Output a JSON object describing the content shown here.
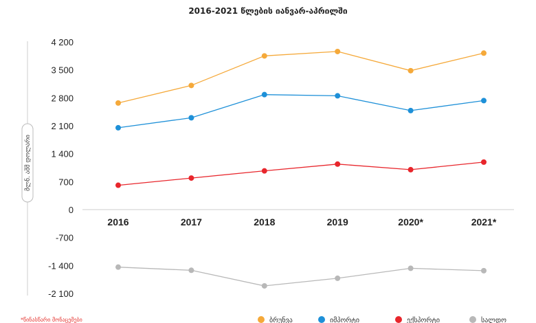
{
  "chart_data": {
    "type": "line",
    "title": "2016-2021 წლების იანვარ-აპრილში",
    "ylabel": "მლნ. აშშ დოლარი",
    "ylim": [
      -2100,
      4200
    ],
    "yticks": [
      "4 200",
      "3 500",
      "2 800",
      "2 100",
      "1 400",
      "700",
      "0",
      "-700",
      "-1 400",
      "-2 100"
    ],
    "ytick_values": [
      4200,
      3500,
      2800,
      2100,
      1400,
      700,
      0,
      -700,
      -1400,
      -2100
    ],
    "categories": [
      "2016",
      "2017",
      "2018",
      "2019",
      "2020*",
      "2021*"
    ],
    "series": [
      {
        "name": "ბრუნვა",
        "color": "#f5a93a",
        "values": [
          2670,
          3110,
          3850,
          3960,
          3480,
          3920
        ]
      },
      {
        "name": "იმპორტი",
        "color": "#1e90d8",
        "values": [
          2050,
          2300,
          2880,
          2850,
          2480,
          2730
        ]
      },
      {
        "name": "ექსპორტი",
        "color": "#e8262c",
        "values": [
          610,
          790,
          970,
          1140,
          1000,
          1190
        ]
      },
      {
        "name": "სალდო",
        "color": "#b8b8b8",
        "values": [
          -1440,
          -1520,
          -1910,
          -1720,
          -1470,
          -1530
        ]
      }
    ],
    "note": "*წინასწარი მონაცემები",
    "legend_position": "bottom-right",
    "grid": false
  }
}
